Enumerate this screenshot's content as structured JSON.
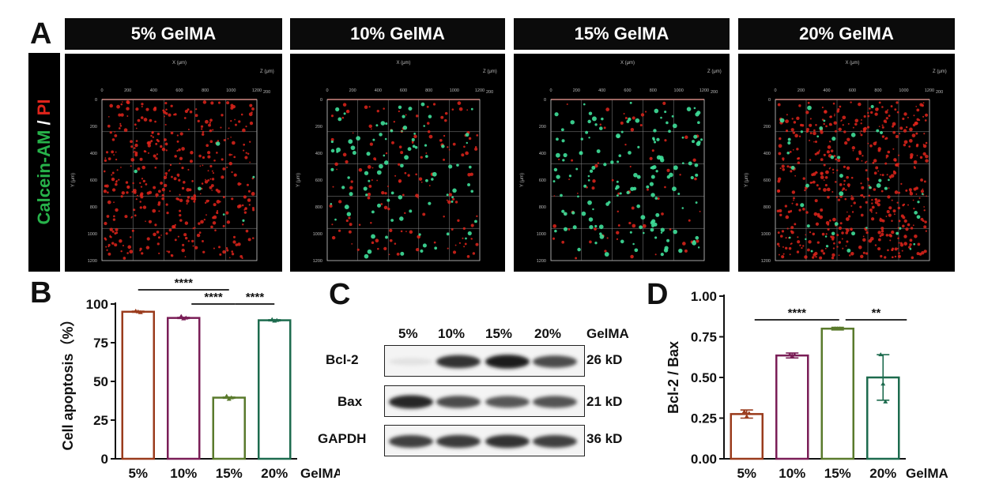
{
  "panels": {
    "a": "A",
    "b": "B",
    "c": "C",
    "d": "D"
  },
  "panel_a": {
    "headers": [
      "5% GelMA",
      "10% GelMA",
      "15% GelMA",
      "20% GelMA"
    ],
    "stain_label": {
      "part1": "Calcein-AM",
      "sep": " / ",
      "part2": "PI"
    },
    "axis_x_label": "X (μm)",
    "axis_y_label": "Y (μm)",
    "axis_z_label": "Z (μm)",
    "x_ticks": [
      "0",
      "200",
      "400",
      "600",
      "800",
      "1000",
      "1200"
    ],
    "y_ticks": [
      "0",
      "200",
      "400",
      "600",
      "800",
      "1000",
      "1200"
    ],
    "z_ticks": [
      "0",
      "200"
    ],
    "colors": {
      "live": "#3fe09a",
      "dead": "#e0241b"
    }
  },
  "chart_data": [
    {
      "type": "bar",
      "panel": "B",
      "categories": [
        "5%",
        "10%",
        "15%",
        "20%"
      ],
      "xlabel": "GelMA",
      "ylabel": "Cell apoptosis（%）",
      "values": [
        95,
        91,
        39.5,
        89.5
      ],
      "points": [
        [
          95.5,
          95,
          94.5
        ],
        [
          92,
          90.5,
          91
        ],
        [
          40.5,
          38.5,
          39.5
        ],
        [
          90,
          89,
          89.5
        ]
      ],
      "ylim": [
        0,
        100
      ],
      "yticks": [
        0,
        25,
        50,
        75,
        100
      ],
      "colors": [
        "#9a3b1c",
        "#7a1e57",
        "#5a7a2c",
        "#1d6b4e"
      ],
      "significance": [
        {
          "from": 0,
          "to": 2,
          "label": "****"
        },
        {
          "from": 1,
          "to": 2,
          "label": "****"
        },
        {
          "from": 2,
          "to": 3,
          "label": "****"
        }
      ]
    },
    {
      "type": "bar",
      "panel": "D",
      "categories": [
        "5%",
        "10%",
        "15%",
        "20%"
      ],
      "xlabel": "GelMA",
      "ylabel": "Bcl-2 / Bax",
      "values": [
        0.275,
        0.635,
        0.8,
        0.5
      ],
      "errors": [
        0.025,
        0.015,
        0.008,
        0.14
      ],
      "points": [
        [
          0.29,
          0.26,
          0.28
        ],
        [
          0.64,
          0.63,
          0.64
        ],
        [
          0.8,
          0.8,
          0.8
        ],
        [
          0.64,
          0.46,
          0.35
        ]
      ],
      "ylim": [
        0,
        1.0
      ],
      "yticks": [
        "0.00",
        "0.25",
        "0.50",
        "0.75",
        "1.00"
      ],
      "colors": [
        "#9a3b1c",
        "#7a1e57",
        "#5a7a2c",
        "#1d6b4e"
      ],
      "significance": [
        {
          "from": 0,
          "to": 2,
          "label": "****"
        },
        {
          "from": 2,
          "to": 3,
          "label": "**"
        }
      ]
    }
  ],
  "panel_c": {
    "lanes": [
      "5%",
      "10%",
      "15%",
      "20%"
    ],
    "lane_suffix": "GelMA",
    "proteins": [
      {
        "name": "Bcl-2",
        "size": "26 kD",
        "intensity": [
          0.12,
          0.85,
          0.95,
          0.75
        ]
      },
      {
        "name": "Bax",
        "size": "21 kD",
        "intensity": [
          0.9,
          0.75,
          0.7,
          0.72
        ]
      },
      {
        "name": "GAPDH",
        "size": "36 kD",
        "intensity": [
          0.8,
          0.82,
          0.85,
          0.8
        ]
      }
    ]
  }
}
